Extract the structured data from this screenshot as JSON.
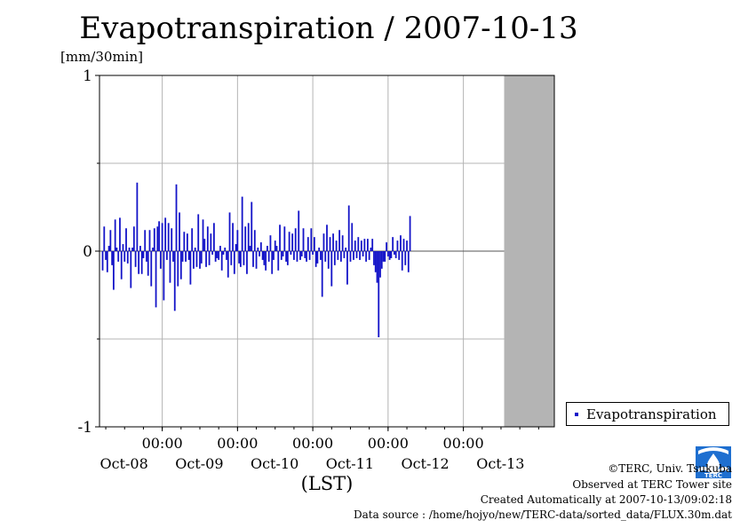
{
  "title": "Evapotranspiration / 2007-10-13",
  "yunit": "[mm/30min]",
  "xlabel": "(LST)",
  "legend": {
    "label": "Evapotranspiration",
    "color": "#1414c8"
  },
  "footer": {
    "copyright": "©TERC, Univ. Tsukuba",
    "site": "Observed at TERC Tower site",
    "created": "Created Automatically at 2007-10-13/09:02:18",
    "source": "Data source : /home/hojyo/new/TERC-data/sorted_data/FLUX.30m.dat"
  },
  "logo": {
    "icon": "terc-logo-icon",
    "text": "TERC"
  },
  "chart_data": {
    "type": "bar",
    "title": "Evapotranspiration / 2007-10-13",
    "ylabel": "[mm/30min]",
    "xlabel": "(LST)",
    "ylim": [
      -1,
      1
    ],
    "yticks": [
      -1,
      0,
      1
    ],
    "x_start_hour": 0,
    "x_end_hour": 145,
    "time_ticks": [
      {
        "time": "00:00",
        "date": "Oct-08",
        "hour": 20
      },
      {
        "time": "00:00",
        "date": "Oct-09",
        "hour": 44
      },
      {
        "time": "00:00",
        "date": "Oct-10",
        "hour": 68
      },
      {
        "time": "00:00",
        "date": "Oct-11",
        "hour": 92
      },
      {
        "time": "00:00",
        "date": "Oct-12",
        "hour": 116
      },
      {
        "time": "",
        "date": "Oct-13",
        "hour": 140
      }
    ],
    "no_data_region": [
      129,
      145
    ],
    "grid": true,
    "legend_position": "right",
    "series": [
      {
        "name": "Evapotranspiration",
        "color": "#1414c8",
        "interval_hours": 0.5,
        "start_hour": 1.0,
        "values": [
          -0.11,
          0.14,
          -0.05,
          -0.12,
          0.03,
          0.12,
          -0.08,
          -0.22,
          0.18,
          0.02,
          -0.06,
          0.19,
          -0.16,
          0.04,
          -0.06,
          0.13,
          -0.07,
          0.02,
          -0.21,
          0.02,
          0.14,
          -0.09,
          0.39,
          -0.13,
          0.03,
          -0.13,
          -0.04,
          0.12,
          -0.06,
          -0.14,
          0.12,
          -0.2,
          0.02,
          0.13,
          -0.32,
          0.14,
          0.17,
          -0.1,
          0.16,
          -0.28,
          0.19,
          -0.05,
          0.16,
          -0.18,
          0.13,
          -0.06,
          -0.34,
          0.38,
          -0.2,
          0.22,
          -0.16,
          -0.06,
          0.11,
          -0.06,
          0.1,
          -0.05,
          -0.19,
          0.13,
          -0.1,
          0.02,
          -0.09,
          0.21,
          -0.1,
          -0.07,
          0.18,
          0.07,
          -0.09,
          0.14,
          -0.08,
          0.1,
          -0.02,
          0.16,
          -0.06,
          -0.04,
          -0.05,
          0.03,
          -0.11,
          -0.02,
          0.02,
          -0.05,
          -0.15,
          0.22,
          -0.08,
          0.16,
          -0.13,
          0.04,
          0.12,
          -0.07,
          -0.09,
          0.31,
          -0.08,
          0.14,
          -0.13,
          0.16,
          0.03,
          0.28,
          -0.09,
          0.12,
          -0.1,
          0.02,
          -0.03,
          0.05,
          -0.05,
          -0.08,
          -0.11,
          0.03,
          -0.06,
          0.09,
          -0.13,
          -0.05,
          0.06,
          0.03,
          -0.11,
          0.15,
          -0.05,
          -0.03,
          0.14,
          -0.06,
          -0.08,
          0.11,
          -0.02,
          0.1,
          -0.05,
          0.13,
          -0.06,
          0.23,
          -0.05,
          -0.03,
          0.13,
          -0.04,
          -0.06,
          0.08,
          -0.05,
          0.13,
          -0.02,
          0.08,
          -0.09,
          -0.07,
          0.02,
          -0.05,
          -0.26,
          0.1,
          -0.06,
          0.15,
          -0.1,
          0.08,
          -0.2,
          0.1,
          -0.08,
          0.06,
          -0.05,
          0.12,
          -0.06,
          0.09,
          -0.04,
          0.02,
          -0.19,
          0.26,
          -0.06,
          0.16,
          -0.05,
          0.06,
          -0.04,
          0.08,
          -0.05,
          0.06,
          -0.03,
          0.07,
          -0.06,
          0.07,
          -0.05,
          0.02,
          0.07,
          -0.08,
          -0.12,
          -0.18,
          -0.49,
          -0.15,
          -0.1,
          -0.06,
          -0.06,
          0.05,
          -0.03,
          -0.05,
          -0.04,
          0.08,
          -0.02,
          -0.04,
          0.06,
          -0.05,
          0.09,
          -0.11,
          0.07,
          -0.08,
          0.06,
          -0.12,
          0.2
        ]
      }
    ]
  }
}
